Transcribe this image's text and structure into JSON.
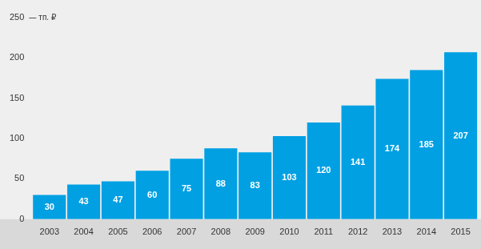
{
  "chart_data": {
    "type": "bar",
    "ylabel": "тп. ₽",
    "categories": [
      "2003",
      "2004",
      "2005",
      "2006",
      "2007",
      "2008",
      "2009",
      "2010",
      "2011",
      "2012",
      "2013",
      "2014",
      "2015"
    ],
    "values": [
      30,
      43,
      47,
      60,
      75,
      88,
      83,
      103,
      120,
      141,
      174,
      185,
      207
    ],
    "color": "#00a0e3",
    "ylim": [
      0,
      250
    ],
    "yticks": [
      0,
      50,
      100,
      150,
      200,
      250
    ],
    "grid": false,
    "data_labels": true
  }
}
